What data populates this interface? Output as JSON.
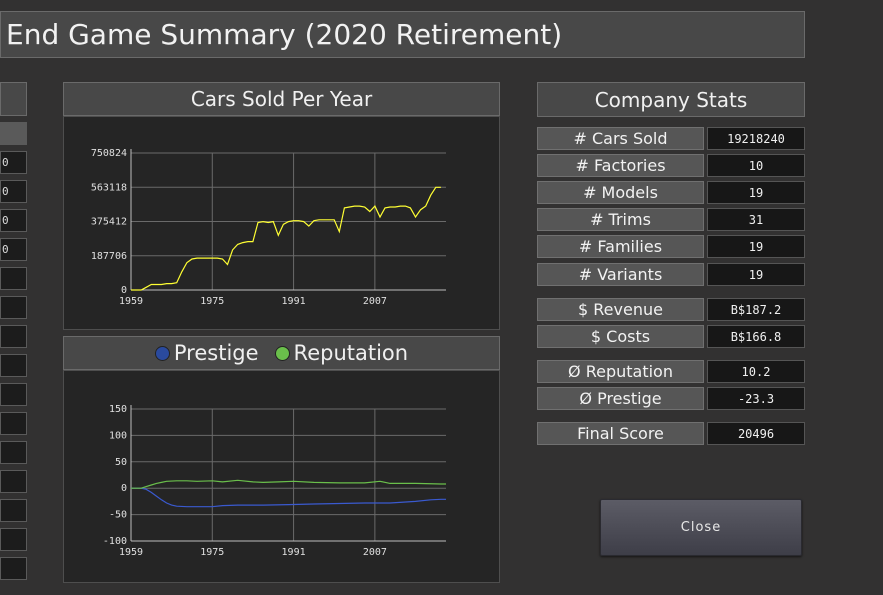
{
  "window": {
    "title": "End Game Summary (2020 Retirement)"
  },
  "left_column": {
    "cells": [
      "",
      "0",
      "0",
      "0",
      "0",
      "",
      "",
      "",
      "",
      "",
      "",
      "",
      "",
      "",
      "",
      ""
    ]
  },
  "cars_chart": {
    "title": "Cars Sold Per Year",
    "chart_data": {
      "type": "line",
      "series": [
        {
          "color": "#ffff33",
          "x": [
            1959,
            1960,
            1961,
            1962,
            1963,
            1964,
            1965,
            1966,
            1967,
            1968,
            1969,
            1970,
            1971,
            1972,
            1973,
            1974,
            1975,
            1976,
            1977,
            1978,
            1979,
            1980,
            1981,
            1982,
            1983,
            1984,
            1985,
            1986,
            1987,
            1988,
            1989,
            1990,
            1991,
            1992,
            1993,
            1994,
            1995,
            1996,
            1997,
            1998,
            1999,
            2000,
            2001,
            2002,
            2003,
            2004,
            2005,
            2006,
            2007,
            2008,
            2009,
            2010,
            2011,
            2012,
            2013,
            2014,
            2015,
            2016,
            2017,
            2018,
            2019,
            2020
          ],
          "values": [
            0,
            0,
            0,
            15000,
            30000,
            30000,
            30000,
            35000,
            35000,
            40000,
            100000,
            150000,
            170000,
            175000,
            175000,
            175000,
            175000,
            175000,
            170000,
            140000,
            220000,
            250000,
            260000,
            265000,
            265000,
            370000,
            375000,
            370000,
            375000,
            300000,
            360000,
            375000,
            380000,
            380000,
            375000,
            350000,
            380000,
            385000,
            385000,
            385000,
            385000,
            320000,
            450000,
            455000,
            460000,
            460000,
            455000,
            430000,
            460000,
            400000,
            450000,
            455000,
            455000,
            460000,
            460000,
            450000,
            400000,
            440000,
            460000,
            520000,
            563118,
            563118
          ]
        }
      ],
      "yticks": [
        "750824",
        "563118",
        "375412",
        "187706",
        "0"
      ],
      "ytick_values": [
        750824,
        563118,
        375412,
        187706,
        0
      ],
      "xticks": [
        "1959",
        "1975",
        "1991",
        "2007"
      ],
      "xtick_values": [
        1959,
        1975,
        1991,
        2007
      ],
      "xlim": [
        1959,
        2021
      ],
      "ylim": [
        0,
        750824
      ]
    }
  },
  "prestige_chart": {
    "legend": [
      {
        "label": "Prestige",
        "color": "#2a4a9e"
      },
      {
        "label": "Reputation",
        "color": "#6abf4b"
      }
    ],
    "chart_data": {
      "type": "line",
      "series": [
        {
          "name": "Prestige",
          "color": "#3a5ad0",
          "x": [
            1959,
            1961,
            1962,
            1963,
            1964,
            1965,
            1966,
            1967,
            1968,
            1970,
            1975,
            1977,
            1980,
            1985,
            1990,
            1995,
            2000,
            2005,
            2010,
            2015,
            2018,
            2020,
            2021
          ],
          "values": [
            0,
            0,
            -2,
            -8,
            -15,
            -22,
            -28,
            -32,
            -34,
            -35,
            -35,
            -33,
            -32,
            -32,
            -31,
            -30,
            -29,
            -28,
            -28,
            -25,
            -22,
            -21,
            -21
          ]
        },
        {
          "name": "Reputation",
          "color": "#6abf4b",
          "x": [
            1959,
            1961,
            1962,
            1963,
            1964,
            1965,
            1966,
            1968,
            1970,
            1972,
            1975,
            1977,
            1980,
            1983,
            1985,
            1988,
            1991,
            1995,
            2000,
            2005,
            2008,
            2010,
            2015,
            2020,
            2021
          ],
          "values": [
            0,
            0,
            3,
            6,
            9,
            11,
            13,
            14,
            14,
            13,
            14,
            12,
            15,
            12,
            11,
            12,
            13,
            11,
            10,
            10,
            13,
            9,
            9,
            8,
            8
          ]
        }
      ],
      "yticks": [
        "150",
        "100",
        "50",
        "0",
        "-50",
        "-100"
      ],
      "ytick_values": [
        150,
        100,
        50,
        0,
        -50,
        -100
      ],
      "xticks": [
        "1959",
        "1975",
        "1991",
        "2007"
      ],
      "xtick_values": [
        1959,
        1975,
        1991,
        2007
      ],
      "xlim": [
        1959,
        2021
      ],
      "ylim": [
        -100,
        150
      ]
    }
  },
  "company_stats": {
    "title": "Company Stats",
    "rows": [
      {
        "label": "# Cars Sold",
        "value": "19218240"
      },
      {
        "label": "# Factories",
        "value": "10"
      },
      {
        "label": "# Models",
        "value": "19"
      },
      {
        "label": "# Trims",
        "value": "31"
      },
      {
        "label": "# Families",
        "value": "19"
      },
      {
        "label": "# Variants",
        "value": "19"
      },
      {
        "label": "$ Revenue",
        "value": "B$187.2"
      },
      {
        "label": "$ Costs",
        "value": "B$166.8"
      },
      {
        "label": "Ø Reputation",
        "value": "10.2"
      },
      {
        "label": "Ø Prestige",
        "value": "-23.3"
      },
      {
        "label": "Final Score",
        "value": "20496"
      }
    ]
  },
  "close_button": {
    "label": "Close"
  }
}
